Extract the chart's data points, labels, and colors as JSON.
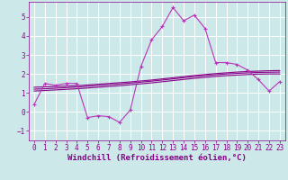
{
  "background_color": "#cce8e8",
  "grid_color": "#aacccc",
  "line_color": "#880088",
  "line_color2": "#bb33bb",
  "xlabel": "Windchill (Refroidissement éolien,°C)",
  "xlim": [
    -0.5,
    23.5
  ],
  "ylim": [
    -1.5,
    5.8
  ],
  "yticks": [
    -1,
    0,
    1,
    2,
    3,
    4,
    5
  ],
  "xticks": [
    0,
    1,
    2,
    3,
    4,
    5,
    6,
    7,
    8,
    9,
    10,
    11,
    12,
    13,
    14,
    15,
    16,
    17,
    18,
    19,
    20,
    21,
    22,
    23
  ],
  "main_series": [
    0.4,
    1.5,
    1.4,
    1.5,
    1.5,
    -0.3,
    -0.2,
    -0.25,
    -0.55,
    0.1,
    2.4,
    3.8,
    4.5,
    5.5,
    4.8,
    5.1,
    4.4,
    2.6,
    2.6,
    2.5,
    2.2,
    1.7,
    1.1,
    1.6
  ],
  "line1": [
    1.3,
    1.32,
    1.34,
    1.36,
    1.38,
    1.42,
    1.46,
    1.5,
    1.54,
    1.58,
    1.63,
    1.68,
    1.74,
    1.8,
    1.86,
    1.92,
    1.97,
    2.02,
    2.06,
    2.1,
    2.13,
    2.15,
    2.17,
    2.18
  ],
  "line2": [
    1.2,
    1.22,
    1.25,
    1.28,
    1.31,
    1.35,
    1.39,
    1.43,
    1.47,
    1.52,
    1.57,
    1.62,
    1.68,
    1.74,
    1.8,
    1.86,
    1.91,
    1.96,
    2.0,
    2.03,
    2.06,
    2.08,
    2.09,
    2.1
  ],
  "line3": [
    1.1,
    1.13,
    1.16,
    1.19,
    1.22,
    1.26,
    1.3,
    1.34,
    1.38,
    1.43,
    1.48,
    1.53,
    1.59,
    1.65,
    1.71,
    1.77,
    1.82,
    1.87,
    1.91,
    1.94,
    1.97,
    1.99,
    2.0,
    2.0
  ],
  "label_fontsize": 6.5,
  "tick_fontsize": 5.5
}
